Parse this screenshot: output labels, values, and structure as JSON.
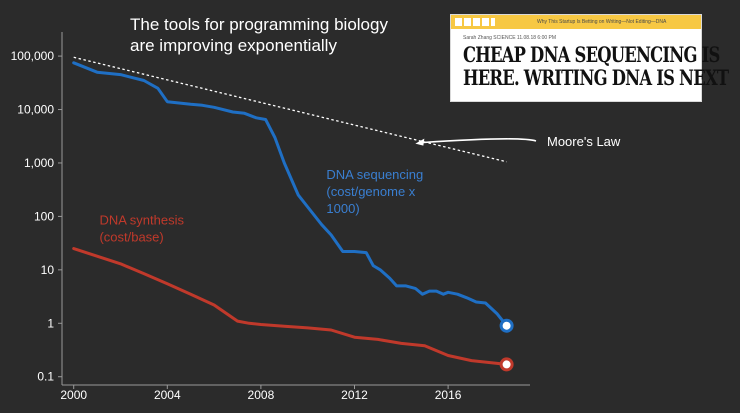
{
  "title": {
    "line1": "The tools for programming biology",
    "line2": "are improving exponentially"
  },
  "article": {
    "top_bar": "Why This Startup Is Betting on Writing—Not Editing—DNA",
    "byline": "Sarah Zhang   SCIENCE   11.08.18   6:00 PM",
    "headline_line1": "CHEAP DNA SEQUENCING IS",
    "headline_line2": "HERE. WRITING DNA IS NEXT"
  },
  "colors": {
    "background": "#2b2b2b",
    "sequencing": "#1f6fc4",
    "synthesis": "#c0392b",
    "moores_law": "#ffffff"
  },
  "chart_data": {
    "type": "line",
    "yscale": "log",
    "xlim": [
      1999.5,
      2019.5
    ],
    "ylim": [
      0.07,
      200000
    ],
    "y_ticks": [
      0.1,
      1,
      10,
      100,
      1000,
      10000,
      100000
    ],
    "y_tick_labels": [
      "0.1",
      "1",
      "10",
      "100",
      "1,000",
      "10,000",
      "100,000"
    ],
    "x_ticks": [
      2000,
      2004,
      2008,
      2012,
      2016
    ],
    "x_tick_labels": [
      "2000",
      "2004",
      "2008",
      "2012",
      "2016"
    ],
    "series": [
      {
        "key": "sequencing",
        "label_lines": [
          "DNA sequencing",
          "(cost/genome x",
          "1000)"
        ],
        "x": [
          2000,
          2001,
          2002,
          2003,
          2003.6,
          2004,
          2005,
          2005.5,
          2006,
          2006.8,
          2007.3,
          2007.8,
          2008.2,
          2008.6,
          2009,
          2009.6,
          2010,
          2010.6,
          2011,
          2011.5,
          2012,
          2012.5,
          2012.8,
          2013.1,
          2013.5,
          2013.8,
          2014.2,
          2014.6,
          2014.9,
          2015.2,
          2015.5,
          2015.8,
          2016,
          2016.4,
          2016.8,
          2017.2,
          2017.6,
          2018.1,
          2018.5
        ],
        "values": [
          75000,
          50000,
          45000,
          35000,
          25000,
          14000,
          12500,
          12000,
          11000,
          9000,
          8500,
          7000,
          6500,
          3000,
          1000,
          250,
          150,
          70,
          45,
          22,
          22,
          21,
          12,
          10,
          7,
          5,
          5,
          4.5,
          3.5,
          4,
          4,
          3.5,
          3.8,
          3.5,
          3,
          2.5,
          2.4,
          1.5,
          0.9
        ]
      },
      {
        "key": "synthesis",
        "label_lines": [
          "DNA synthesis",
          "(cost/base)"
        ],
        "x": [
          2000,
          2001,
          2002,
          2003,
          2004,
          2005,
          2006,
          2007,
          2007.5,
          2008,
          2009,
          2010,
          2011,
          2012,
          2013,
          2014,
          2015,
          2016,
          2017,
          2018.5
        ],
        "values": [
          25,
          18,
          13,
          8.5,
          5.5,
          3.5,
          2.2,
          1.1,
          1.0,
          0.95,
          0.88,
          0.82,
          0.75,
          0.55,
          0.5,
          0.42,
          0.38,
          0.25,
          0.2,
          0.17
        ]
      },
      {
        "key": "moores_law",
        "x": [
          2000,
          2018.5
        ],
        "values": [
          95000,
          1050
        ]
      }
    ],
    "annotations": {
      "moores_law": "Moore's Law"
    }
  }
}
